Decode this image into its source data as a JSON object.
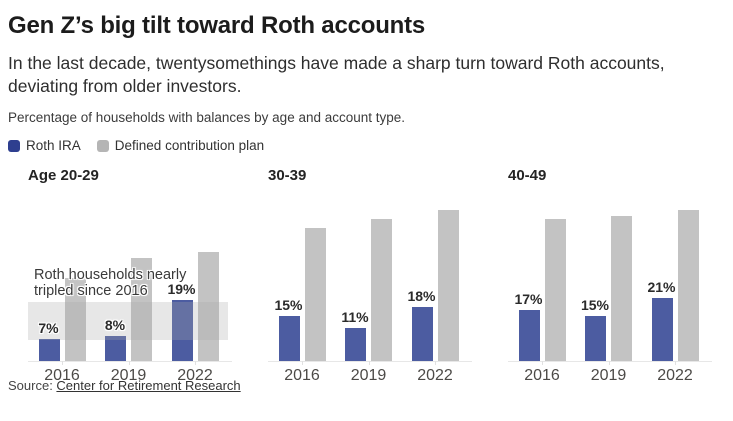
{
  "header": {
    "title": "Gen Z’s big tilt toward Roth accounts",
    "subtitle": "In the last decade, twentysomethings have made a sharp turn toward Roth accounts, deviating from older investors.",
    "kicker": "Percentage of households with balances by age and account type."
  },
  "legend": [
    {
      "label": "Roth IRA",
      "color": "#2e3f8f"
    },
    {
      "label": "Defined contribution plan",
      "color": "#b5b5b5"
    }
  ],
  "colors": {
    "roth_bar": "#4c5ca1",
    "dc_bar": "#c3c3c3",
    "highlight_band": "rgba(170,170,170,0.28)"
  },
  "chart_data": {
    "type": "bar",
    "categories": [
      "2016",
      "2019",
      "2022"
    ],
    "legend_position": "top",
    "grid": false,
    "panels": [
      {
        "title": "Age 20-29",
        "ylim": [
          0,
          47
        ],
        "series": [
          {
            "name": "Roth IRA",
            "values": [
              7,
              8,
              19
            ],
            "labels": [
              "7%",
              "8%",
              "19%"
            ]
          },
          {
            "name": "Defined contribution plan",
            "values": [
              26,
              32,
              34
            ],
            "labels": null
          }
        ],
        "annotation": {
          "lines": [
            "Roth households nearly",
            "tripled since 2016"
          ],
          "band_pct": [
            6.6,
            18.3
          ]
        }
      },
      {
        "title": "30-39",
        "ylim": [
          0,
          50
        ],
        "series": [
          {
            "name": "Roth IRA",
            "values": [
              15,
              11,
              18
            ],
            "labels": [
              "15%",
              "11%",
              "18%"
            ]
          },
          {
            "name": "Defined contribution plan",
            "values": [
              44,
              47,
              50
            ],
            "labels": null
          }
        ],
        "annotation": null
      },
      {
        "title": "40-49",
        "ylim": [
          0,
          50
        ],
        "series": [
          {
            "name": "Roth IRA",
            "values": [
              17,
              15,
              21
            ],
            "labels": [
              "17%",
              "15%",
              "21%"
            ]
          },
          {
            "name": "Defined contribution plan",
            "values": [
              47,
              48,
              50
            ],
            "labels": null
          }
        ],
        "annotation": null
      }
    ]
  },
  "source": {
    "prefix": "Source: ",
    "link_text": "Center for Retirement Research"
  }
}
